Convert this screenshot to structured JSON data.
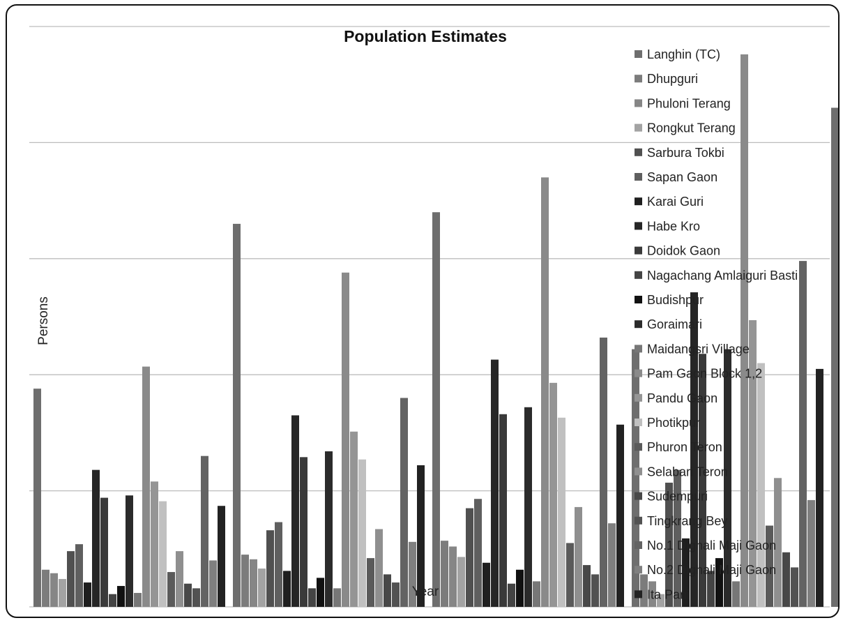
{
  "chart_data": {
    "type": "bar",
    "title": "Population Estimates",
    "xlabel": "Year",
    "ylabel": "Persons",
    "grid": true,
    "legend_position": "right",
    "categories": [
      "",
      "",
      "",
      "",
      ""
    ],
    "ylim": [
      0,
      5
    ],
    "series": [
      {
        "name": "Langhin (TC)",
        "color": "#6e6e6e",
        "values": [
          1.88,
          3.3,
          3.4,
          2.22,
          4.3
        ]
      },
      {
        "name": "Dhupguri",
        "color": "#7c7c7c",
        "values": [
          0.32,
          0.45,
          0.57,
          0.28,
          0.3
        ]
      },
      {
        "name": "Phuloni Terang",
        "color": "#868686",
        "values": [
          0.29,
          0.41,
          0.52,
          0.22,
          0.25
        ]
      },
      {
        "name": "Rongkut Terang",
        "color": "#a3a3a3",
        "values": [
          0.24,
          0.33,
          0.43,
          0.11,
          0.17
        ]
      },
      {
        "name": "Sarbura Tokbi",
        "color": "#505050",
        "values": [
          0.48,
          0.66,
          0.85,
          1.07,
          1.09
        ]
      },
      {
        "name": "Sapan Gaon",
        "color": "#5f5f5f",
        "values": [
          0.54,
          0.73,
          0.93,
          1.18,
          1.22
        ]
      },
      {
        "name": "Karai Guri",
        "color": "#1f1f1f",
        "values": [
          0.21,
          0.31,
          0.38,
          0.59,
          0.49
        ]
      },
      {
        "name": "Habe Kro",
        "color": "#262626",
        "values": [
          1.18,
          1.65,
          2.13,
          2.71,
          2.69
        ]
      },
      {
        "name": "Doidok Gaon",
        "color": "#3a3a3a",
        "values": [
          0.94,
          1.29,
          1.66,
          2.18,
          2.13
        ]
      },
      {
        "name": "Nagachang Amlaiguri Basti",
        "color": "#444444",
        "values": [
          0.11,
          0.16,
          0.2,
          0.31,
          0.32
        ]
      },
      {
        "name": "Budishpur",
        "color": "#111111",
        "values": [
          0.18,
          0.25,
          0.32,
          0.42,
          0.25
        ]
      },
      {
        "name": "Goraimari",
        "color": "#2b2b2b",
        "values": [
          0.96,
          1.34,
          1.72,
          2.22,
          2.19
        ]
      },
      {
        "name": "Maidangsri Village",
        "color": "#777777",
        "values": [
          0.12,
          0.16,
          0.22,
          0.22,
          0.28
        ]
      },
      {
        "name": "Pam Gaon Block 1,2",
        "color": "#8a8a8a",
        "values": [
          2.07,
          2.88,
          3.7,
          4.76,
          4.74
        ]
      },
      {
        "name": "Pandu Gaon",
        "color": "#959595",
        "values": [
          1.08,
          1.51,
          1.93,
          2.47,
          2.47
        ]
      },
      {
        "name": "Photikpur",
        "color": "#c0c0c0",
        "values": [
          0.91,
          1.27,
          1.63,
          2.1,
          2.08
        ]
      },
      {
        "name": "Phuron Teron",
        "color": "#5a5a5a",
        "values": [
          0.3,
          0.42,
          0.55,
          0.7,
          0.69
        ]
      },
      {
        "name": "Selabari Teron",
        "color": "#8f8f8f",
        "values": [
          0.48,
          0.67,
          0.86,
          1.11,
          1.11
        ]
      },
      {
        "name": "Sudempuri",
        "color": "#484848",
        "values": [
          0.2,
          0.28,
          0.36,
          0.47,
          0.38
        ]
      },
      {
        "name": "Tingkrang Bey",
        "color": "#525252",
        "values": [
          0.16,
          0.21,
          0.28,
          0.34,
          0.36
        ]
      },
      {
        "name": "No.1 Dighali Maji Gaon",
        "color": "#636363",
        "values": [
          1.3,
          1.8,
          2.32,
          2.98,
          2.92
        ]
      },
      {
        "name": "No.2 Dighali Maji Gaon",
        "color": "#7f7f7f",
        "values": [
          0.4,
          0.56,
          0.72,
          0.92,
          0.93
        ]
      },
      {
        "name": "Ita Pani",
        "color": "#222222",
        "values": [
          0.87,
          1.22,
          1.57,
          2.05,
          1.98
        ]
      }
    ]
  }
}
